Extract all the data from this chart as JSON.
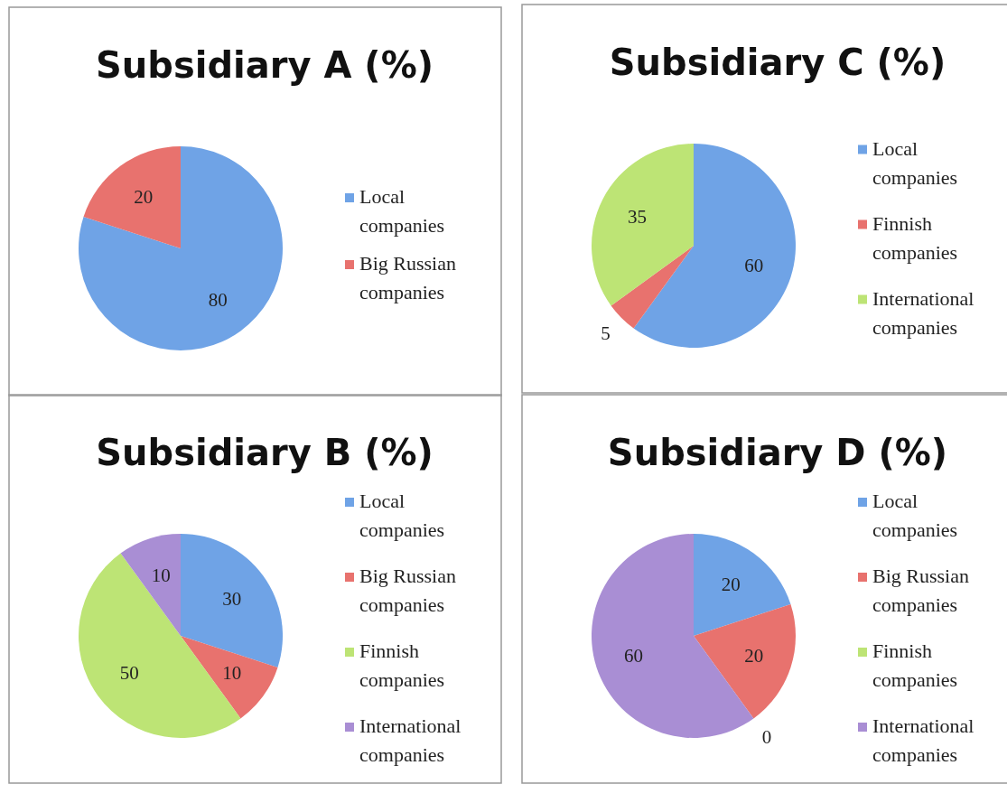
{
  "chart_data": [
    {
      "type": "pie",
      "title": "Subsidiary A (%)",
      "categories": [
        "Local companies",
        "Big Russian companies"
      ],
      "values": [
        80,
        20
      ],
      "colors": [
        "#6fa3e6",
        "#e8726e"
      ],
      "data_labels": true,
      "legend": "right"
    },
    {
      "type": "pie",
      "title": "Subsidiary C (%)",
      "categories": [
        "Local companies",
        "Finnish companies",
        "International companies"
      ],
      "values": [
        60,
        5,
        35
      ],
      "colors": [
        "#6fa3e6",
        "#e8726e",
        "#bde475"
      ],
      "data_labels": true,
      "legend": "right"
    },
    {
      "type": "pie",
      "title": "Subsidiary B (%)",
      "categories": [
        "Local companies",
        "Big Russian companies",
        "Finnish companies",
        "International companies"
      ],
      "values": [
        30,
        10,
        50,
        10
      ],
      "colors": [
        "#6fa3e6",
        "#e8726e",
        "#bde475",
        "#a98ed4"
      ],
      "data_labels": true,
      "legend": "right"
    },
    {
      "type": "pie",
      "title": "Subsidiary D (%)",
      "categories": [
        "Local companies",
        "Big Russian companies",
        "Finnish companies",
        "International companies"
      ],
      "values": [
        20,
        20,
        0,
        60
      ],
      "value_labels": [
        "20",
        "20",
        "0",
        "60"
      ],
      "colors": [
        "#6fa3e6",
        "#e8726e",
        "#bde475",
        "#a98ed4"
      ],
      "legend": "right"
    }
  ]
}
